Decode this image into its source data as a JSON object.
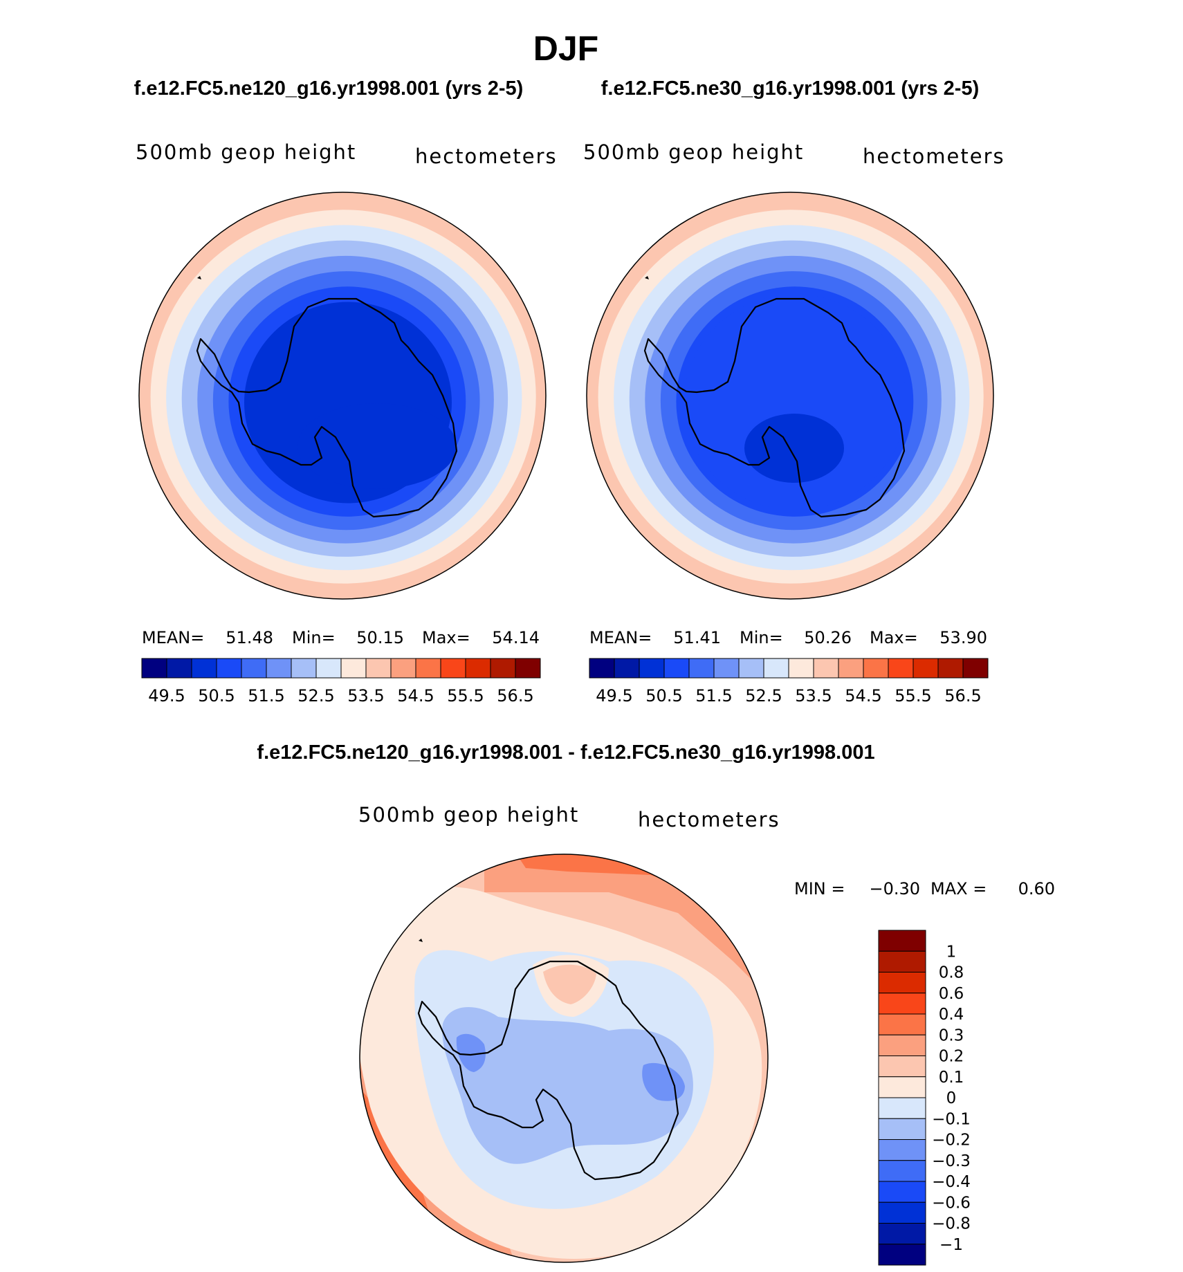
{
  "title": "DJF",
  "colors": {
    "abs_scale": [
      "#000080",
      "#0019a6",
      "#0031d6",
      "#1a4af7",
      "#3f6cf6",
      "#6f92f7",
      "#a6bff7",
      "#d8e7fb",
      "#fde9dc",
      "#fcc6b0",
      "#fba07f",
      "#fb7447",
      "#f94619",
      "#db2b00",
      "#af1a00",
      "#7f0000"
    ],
    "diff_scale": [
      "#000080",
      "#0019a6",
      "#0031d6",
      "#1a4af7",
      "#3f6cf6",
      "#6f92f7",
      "#a6bff7",
      "#d8e7fb",
      "#fde9dc",
      "#fcc6b0",
      "#fba07f",
      "#fb7447",
      "#f94619",
      "#db2b00",
      "#af1a00",
      "#7f0000"
    ]
  },
  "chart_data": [
    {
      "type": "heatmap",
      "projection": "south-polar-stereographic",
      "title": "f.e12.FC5.ne120_g16.yr1998.001 (yrs 2-5)",
      "variable": "500mb geop height",
      "units": "hectometers",
      "stats": {
        "mean_label": "MEAN=",
        "mean": "51.48",
        "min_label": "Min=",
        "min": "50.15",
        "max_label": "Max=",
        "max": "54.14"
      },
      "levels": [
        "49.5",
        "50.5",
        "51.5",
        "52.5",
        "53.5",
        "54.5",
        "55.5",
        "56.5"
      ],
      "ring_levels": [
        50.25,
        50.75,
        51.25,
        51.75,
        52.25,
        52.75,
        53.25,
        53.75
      ]
    },
    {
      "type": "heatmap",
      "projection": "south-polar-stereographic",
      "title": "f.e12.FC5.ne30_g16.yr1998.001 (yrs 2-5)",
      "variable": "500mb geop height",
      "units": "hectometers",
      "stats": {
        "mean_label": "MEAN=",
        "mean": "51.41",
        "min_label": "Min=",
        "min": "50.26",
        "max_label": "Max=",
        "max": "53.90"
      },
      "levels": [
        "49.5",
        "50.5",
        "51.5",
        "52.5",
        "53.5",
        "54.5",
        "55.5",
        "56.5"
      ],
      "ring_levels": [
        50.5,
        50.75,
        51.25,
        51.75,
        52.25,
        52.75,
        53.25,
        53.75
      ]
    },
    {
      "type": "heatmap",
      "projection": "south-polar-stereographic",
      "title": "f.e12.FC5.ne120_g16.yr1998.001 - f.e12.FC5.ne30_g16.yr1998.001",
      "variable": "500mb geop height",
      "units": "hectometers",
      "stats": {
        "min_label": "MIN =",
        "min": "−0.30",
        "max_label": "MAX =",
        "max": "0.60"
      },
      "levels": [
        "1",
        "0.8",
        "0.6",
        "0.4",
        "0.3",
        "0.2",
        "0.1",
        "0",
        "−0.1",
        "−0.2",
        "−0.3",
        "−0.4",
        "−0.6",
        "−0.8",
        "−1"
      ]
    }
  ]
}
